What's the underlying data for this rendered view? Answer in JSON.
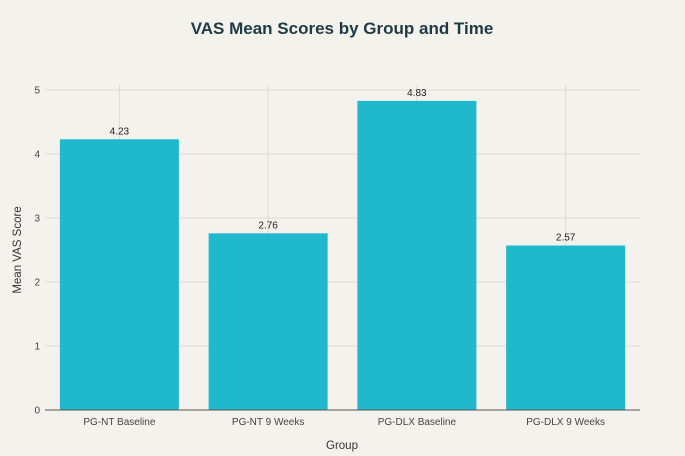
{
  "chart_data": {
    "type": "bar",
    "title": "VAS Mean Scores by Group and Time",
    "xlabel": "Group",
    "ylabel": "Mean VAS Score",
    "categories": [
      "PG-NT Baseline",
      "PG-NT 9 Weeks",
      "PG-DLX Baseline",
      "PG-DLX 9 Weeks"
    ],
    "values": [
      4.23,
      2.76,
      4.83,
      2.57
    ],
    "value_labels": [
      "4.23",
      "2.76",
      "4.83",
      "2.57"
    ],
    "ylim": [
      0,
      5
    ],
    "yticks": [
      0,
      1,
      2,
      3,
      4,
      5
    ],
    "ytick_labels": [
      "0",
      "1",
      "2",
      "3",
      "4",
      "5"
    ],
    "grid": true,
    "bar_color": "#1fb8cd"
  }
}
